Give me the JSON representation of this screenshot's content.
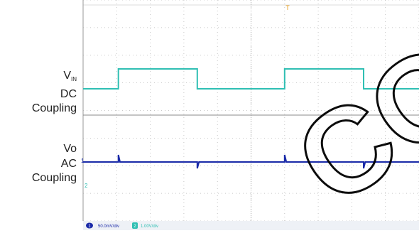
{
  "labels": {
    "vin_main": "V",
    "vin_sub": "IN",
    "vin_line2": "DC",
    "vin_line3": "Coupling",
    "vo_main": "Vo",
    "vo_line2": "AC",
    "vo_line3": "Coupling"
  },
  "markers": {
    "trigger": "T",
    "ch1_ref": "1",
    "ch2_ref": "2"
  },
  "status_bar": {
    "ch1_badge": "1",
    "ch1_text": "50.0mV/div",
    "ch2_badge": "2",
    "ch2_text": "1.00V/div"
  },
  "watermark": {
    "text": "CON"
  },
  "colors": {
    "vin_trace": "#2fbfb3",
    "vo_trace": "#1a2aa8",
    "grid": "#b9b9b9",
    "trigger": "#e8a020",
    "watermark": "#000000"
  },
  "chart_data": {
    "type": "line",
    "title": "",
    "xlabel": "",
    "ylabel": "",
    "grid": true,
    "divisions": {
      "x": 10,
      "y": 8
    },
    "series": [
      {
        "name": "V_IN DC Coupling",
        "x": [
          0,
          1.05,
          1.05,
          3.4,
          3.4,
          6.0,
          6.0,
          8.35,
          8.35,
          10
        ],
        "y": [
          -0.65,
          -0.65,
          0.75,
          0.75,
          -0.65,
          -0.65,
          0.75,
          0.75,
          -0.65,
          -0.65
        ]
      },
      {
        "name": "Vo AC Coupling",
        "x": [
          0,
          1.05,
          1.05,
          1.1,
          3.4,
          3.4,
          3.45,
          6.0,
          6.0,
          6.05,
          8.35,
          8.35,
          8.4,
          10
        ],
        "y": [
          0,
          0,
          0.5,
          0,
          0,
          -0.45,
          0,
          0,
          0.5,
          0,
          0,
          -0.45,
          0,
          0
        ]
      }
    ]
  }
}
